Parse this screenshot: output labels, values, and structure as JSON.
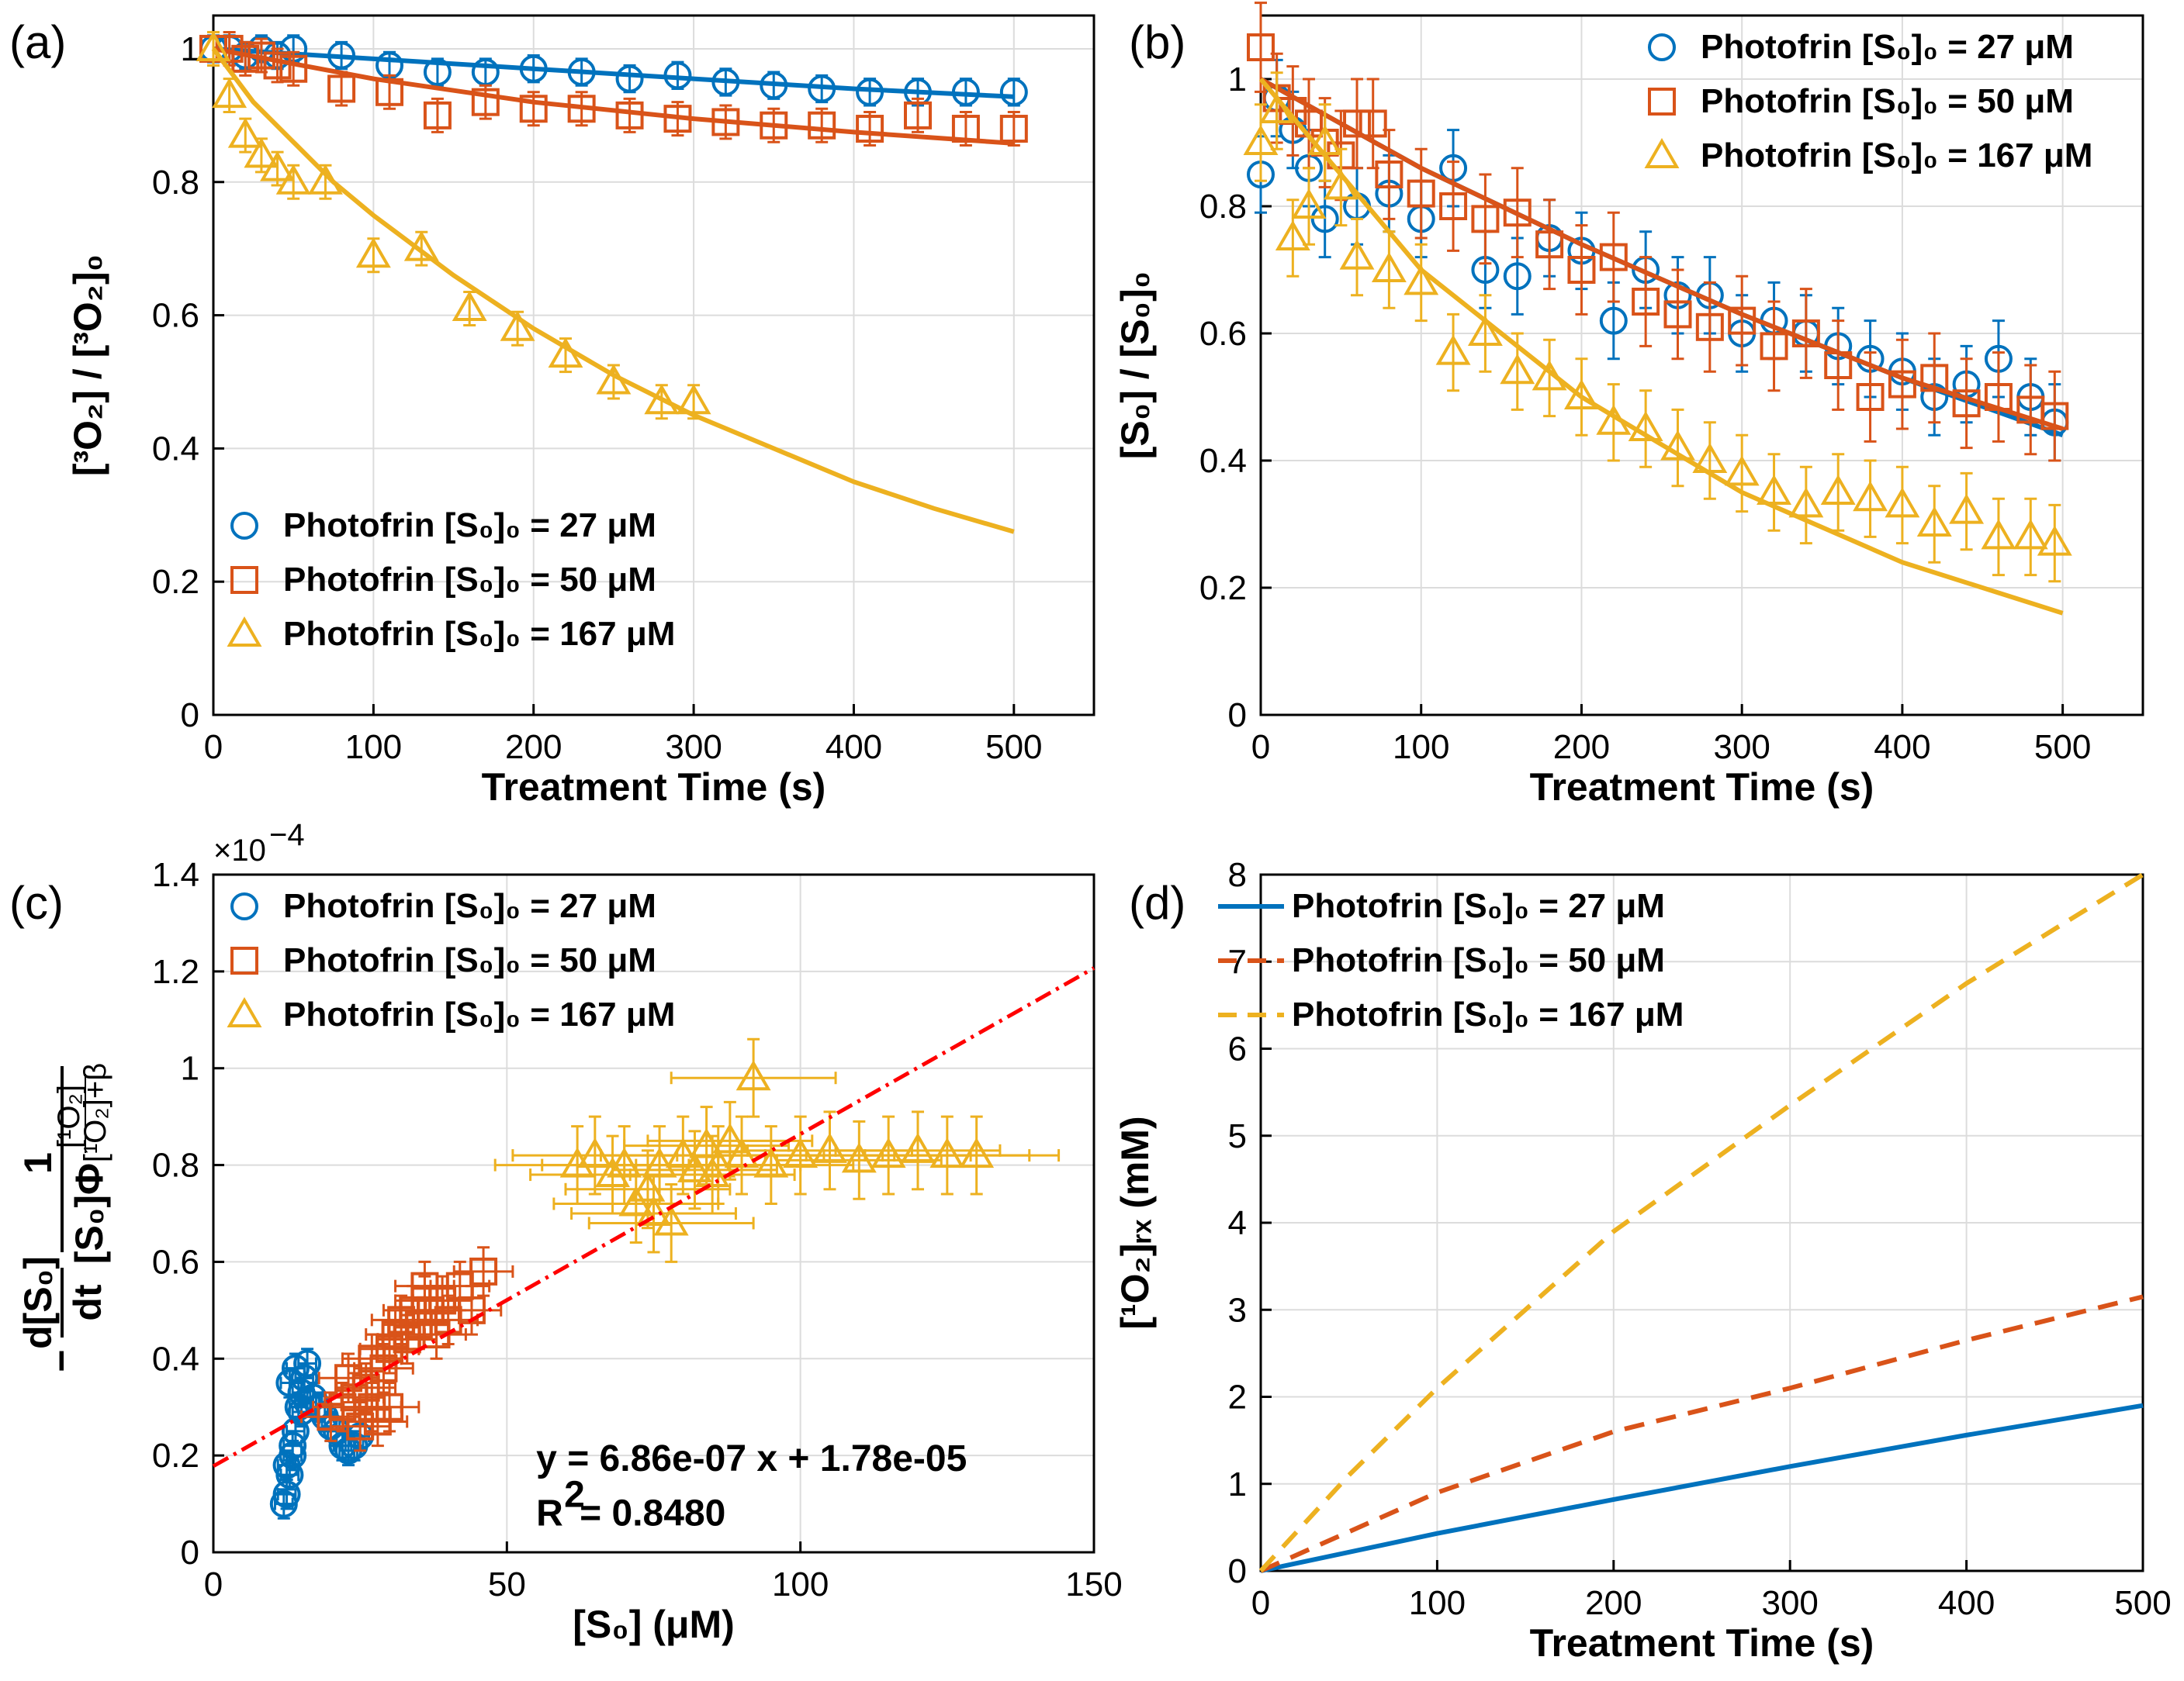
{
  "chart_data": [
    {
      "panel": "a",
      "type": "scatter",
      "panel_label": "(a)",
      "xlabel": "Treatment Time (s)",
      "ylabel": "[³O₂] / [³O₂]₀",
      "xlim": [
        0,
        550
      ],
      "ylim": [
        0,
        1.05
      ],
      "xticks": [
        0,
        100,
        200,
        300,
        400,
        500
      ],
      "yticks": [
        0,
        0.2,
        0.4,
        0.6,
        0.8,
        1
      ],
      "legend_position": "bottom-left",
      "series": [
        {
          "name": "Photofrin [S₀]₀ =  27 μM",
          "color": "#0072BD",
          "marker": "circle",
          "x": [
            0,
            10,
            20,
            30,
            40,
            50,
            80,
            110,
            140,
            170,
            200,
            230,
            260,
            290,
            320,
            350,
            380,
            410,
            440,
            470,
            500
          ],
          "y": [
            1.0,
            1.0,
            0.99,
            1.0,
            0.99,
            1.0,
            0.99,
            0.975,
            0.965,
            0.965,
            0.97,
            0.965,
            0.955,
            0.96,
            0.95,
            0.945,
            0.94,
            0.935,
            0.935,
            0.935,
            0.935
          ],
          "err": 0.02,
          "fit_x": [
            0,
            100,
            200,
            300,
            400,
            500
          ],
          "fit_y": [
            1.0,
            0.985,
            0.97,
            0.955,
            0.94,
            0.928
          ]
        },
        {
          "name": "Photofrin [S₀]₀ = 50 μM",
          "color": "#D95319",
          "marker": "square",
          "x": [
            0,
            10,
            20,
            30,
            40,
            50,
            80,
            110,
            140,
            170,
            200,
            230,
            260,
            290,
            320,
            350,
            380,
            410,
            440,
            470,
            500
          ],
          "y": [
            1.0,
            1.0,
            0.985,
            0.99,
            0.975,
            0.97,
            0.94,
            0.935,
            0.9,
            0.92,
            0.91,
            0.91,
            0.9,
            0.895,
            0.89,
            0.885,
            0.885,
            0.88,
            0.9,
            0.88,
            0.88
          ],
          "err": 0.025,
          "fit_x": [
            0,
            100,
            200,
            300,
            400,
            500
          ],
          "fit_y": [
            1.0,
            0.955,
            0.92,
            0.895,
            0.875,
            0.858
          ]
        },
        {
          "name": "Photofrin [S₀]₀ = 167 μM",
          "color": "#EDB120",
          "marker": "triangle",
          "x": [
            0,
            10,
            20,
            30,
            40,
            50,
            70,
            100,
            130,
            160,
            190,
            220,
            250,
            280,
            300
          ],
          "y": [
            1.0,
            0.93,
            0.87,
            0.84,
            0.82,
            0.8,
            0.8,
            0.69,
            0.7,
            0.61,
            0.58,
            0.54,
            0.5,
            0.47,
            0.47
          ],
          "err": 0.025,
          "fit_x": [
            0,
            25,
            50,
            75,
            100,
            150,
            200,
            250,
            300,
            350,
            400,
            450,
            500
          ],
          "fit_y": [
            1.0,
            0.92,
            0.86,
            0.8,
            0.75,
            0.66,
            0.58,
            0.51,
            0.45,
            0.4,
            0.35,
            0.31,
            0.275
          ]
        }
      ]
    },
    {
      "panel": "b",
      "type": "scatter",
      "panel_label": "(b)",
      "xlabel": "Treatment Time (s)",
      "ylabel": "[S₀] / [S₀]₀",
      "xlim": [
        0,
        550
      ],
      "ylim": [
        0,
        1.1
      ],
      "xticks": [
        0,
        100,
        200,
        300,
        400,
        500
      ],
      "yticks": [
        0,
        0.2,
        0.4,
        0.6,
        0.8,
        1
      ],
      "legend_position": "top-right",
      "series": [
        {
          "name": "Photofrin [S₀]₀ =  27 μM",
          "color": "#0072BD",
          "marker": "circle",
          "x": [
            0,
            10,
            20,
            30,
            40,
            60,
            80,
            100,
            120,
            140,
            160,
            180,
            200,
            220,
            240,
            260,
            280,
            300,
            320,
            340,
            360,
            380,
            400,
            420,
            440,
            460,
            480,
            495
          ],
          "y": [
            0.85,
            0.97,
            0.92,
            0.86,
            0.78,
            0.8,
            0.82,
            0.78,
            0.86,
            0.7,
            0.69,
            0.75,
            0.73,
            0.62,
            0.7,
            0.66,
            0.66,
            0.6,
            0.62,
            0.6,
            0.58,
            0.56,
            0.54,
            0.5,
            0.52,
            0.56,
            0.5,
            0.46
          ],
          "err": 0.06,
          "fit_x": [
            0,
            100,
            200,
            300,
            400,
            500
          ],
          "fit_y": [
            1.0,
            0.86,
            0.74,
            0.63,
            0.53,
            0.44
          ]
        },
        {
          "name": "Photofrin [S₀]₀ = 50 μM",
          "color": "#D95319",
          "marker": "square",
          "x": [
            0,
            10,
            20,
            30,
            40,
            50,
            60,
            70,
            80,
            100,
            120,
            140,
            160,
            180,
            200,
            220,
            240,
            260,
            280,
            300,
            320,
            340,
            360,
            380,
            400,
            420,
            440,
            460,
            480,
            495
          ],
          "y": [
            1.05,
            0.97,
            0.95,
            0.93,
            0.9,
            0.88,
            0.93,
            0.93,
            0.85,
            0.82,
            0.8,
            0.78,
            0.79,
            0.74,
            0.7,
            0.72,
            0.65,
            0.63,
            0.61,
            0.62,
            0.58,
            0.6,
            0.55,
            0.5,
            0.52,
            0.53,
            0.49,
            0.5,
            0.48,
            0.47
          ],
          "err": 0.07,
          "fit_x": [
            0,
            100,
            200,
            300,
            400,
            500
          ],
          "fit_y": [
            1.0,
            0.86,
            0.74,
            0.63,
            0.53,
            0.45
          ]
        },
        {
          "name": "Photofrin [S₀]₀ = 167 μM",
          "color": "#EDB120",
          "marker": "triangle",
          "x": [
            0,
            10,
            20,
            30,
            40,
            50,
            60,
            80,
            100,
            120,
            140,
            160,
            180,
            200,
            220,
            240,
            260,
            280,
            300,
            320,
            340,
            360,
            380,
            400,
            420,
            440,
            460,
            480,
            495
          ],
          "y": [
            0.9,
            0.95,
            0.75,
            0.8,
            0.9,
            0.83,
            0.72,
            0.7,
            0.68,
            0.57,
            0.6,
            0.54,
            0.53,
            0.5,
            0.46,
            0.45,
            0.42,
            0.4,
            0.38,
            0.35,
            0.33,
            0.35,
            0.34,
            0.33,
            0.3,
            0.32,
            0.28,
            0.28,
            0.27
          ],
          "err": 0.06,
          "fit_x": [
            0,
            100,
            200,
            300,
            400,
            500
          ],
          "fit_y": [
            1.0,
            0.7,
            0.5,
            0.35,
            0.24,
            0.16
          ]
        }
      ]
    },
    {
      "panel": "c",
      "type": "scatter",
      "panel_label": "(c)",
      "xlabel": "[S₀] (μM)",
      "ylabel_numer": "d[S₀]",
      "ylabel_denom": "dt",
      "ylabel_factor_numer": "1",
      "ylabel_factor_denom": "[S₀]Φ",
      "ylabel_phi_numer": "[¹O₂]",
      "ylabel_phi_denom": "[¹O₂]+β",
      "ylabel_minus": "−",
      "exponent_label": "×10",
      "exponent_power": "−4",
      "xlim": [
        0,
        150
      ],
      "ylim": [
        0,
        1.4
      ],
      "xticks": [
        0,
        50,
        100,
        150
      ],
      "yticks": [
        0,
        0.2,
        0.4,
        0.6,
        0.8,
        1,
        1.2,
        1.4
      ],
      "legend_position": "top-left",
      "fit_line": {
        "slope": 0.00686,
        "intercept": 0.178,
        "color": "#FF0000"
      },
      "fit_equation": "y = 6.86e-07 x + 1.78e-05",
      "r_squared_label": "R",
      "r_squared_power": "2",
      "r_squared_value": " = 0.8480",
      "series": [
        {
          "name": "Photofrin [S₀]₀ = 27 μM",
          "color": "#0072BD",
          "marker": "circle",
          "x": [
            12,
            12.5,
            13,
            13.5,
            14,
            14.5,
            15,
            15.5,
            16,
            17,
            18,
            19,
            20,
            21,
            22,
            23,
            24,
            25,
            13,
            14,
            15,
            16,
            12.5,
            13.5
          ],
          "y": [
            0.1,
            0.12,
            0.16,
            0.2,
            0.25,
            0.3,
            0.33,
            0.36,
            0.39,
            0.32,
            0.3,
            0.28,
            0.26,
            0.25,
            0.22,
            0.21,
            0.22,
            0.24,
            0.35,
            0.38,
            0.29,
            0.31,
            0.18,
            0.22
          ],
          "xerr": 1.5,
          "yerr": 0.03
        },
        {
          "name": "Photofrin [S₀]₀ = 50 μM",
          "color": "#D95319",
          "marker": "square",
          "x": [
            20,
            22,
            24,
            25,
            26,
            27,
            28,
            29,
            30,
            31,
            32,
            33,
            34,
            35,
            36,
            37,
            38,
            40,
            42,
            44,
            46,
            23,
            27,
            30,
            33,
            36,
            39
          ],
          "y": [
            0.28,
            0.3,
            0.32,
            0.26,
            0.34,
            0.3,
            0.27,
            0.38,
            0.42,
            0.45,
            0.48,
            0.44,
            0.5,
            0.47,
            0.52,
            0.5,
            0.45,
            0.48,
            0.55,
            0.5,
            0.58,
            0.36,
            0.4,
            0.3,
            0.44,
            0.55,
            0.52
          ],
          "xerr": 5,
          "yerr": 0.05
        },
        {
          "name": "Photofrin [S₀]₀ = 167 μM",
          "color": "#EDB120",
          "marker": "triangle",
          "x": [
            62,
            65,
            68,
            70,
            72,
            74,
            76,
            78,
            80,
            82,
            84,
            86,
            88,
            90,
            92,
            95,
            100,
            105,
            110,
            115,
            120,
            125,
            130,
            75,
            85
          ],
          "y": [
            0.8,
            0.82,
            0.78,
            0.8,
            0.72,
            0.75,
            0.8,
            0.68,
            0.82,
            0.79,
            0.84,
            0.8,
            0.85,
            0.82,
            0.98,
            0.8,
            0.82,
            0.83,
            0.81,
            0.82,
            0.83,
            0.82,
            0.82,
            0.7,
            0.78
          ],
          "xerr": 14,
          "yerr": 0.08
        }
      ]
    },
    {
      "panel": "d",
      "type": "line",
      "panel_label": "(d)",
      "xlabel": "Treatment Time (s)",
      "ylabel": "[¹O₂]ᵣₓ (mM)",
      "xlim": [
        0,
        500
      ],
      "ylim": [
        0,
        8
      ],
      "xticks": [
        0,
        100,
        200,
        300,
        400,
        500
      ],
      "yticks": [
        0,
        1,
        2,
        3,
        4,
        5,
        6,
        7,
        8
      ],
      "legend_position": "top-left",
      "series": [
        {
          "name": "Photofrin [S₀]₀ =  27 μM",
          "color": "#0072BD",
          "dash": "solid",
          "x": [
            0,
            100,
            200,
            300,
            400,
            500
          ],
          "values": [
            0,
            0.43,
            0.82,
            1.2,
            1.56,
            1.9
          ]
        },
        {
          "name": "Photofrin [S₀]₀ = 50 μM",
          "color": "#D95319",
          "dash": "dashed",
          "x": [
            0,
            100,
            200,
            300,
            400,
            500
          ],
          "values": [
            0,
            0.9,
            1.6,
            2.1,
            2.65,
            3.15
          ]
        },
        {
          "name": "Photofrin [S₀]₀ = 167 μM",
          "color": "#EDB120",
          "dash": "dashed",
          "x": [
            0,
            50,
            100,
            200,
            300,
            400,
            500
          ],
          "values": [
            0,
            1.1,
            2.1,
            3.9,
            5.35,
            6.75,
            8.0
          ]
        }
      ]
    }
  ]
}
